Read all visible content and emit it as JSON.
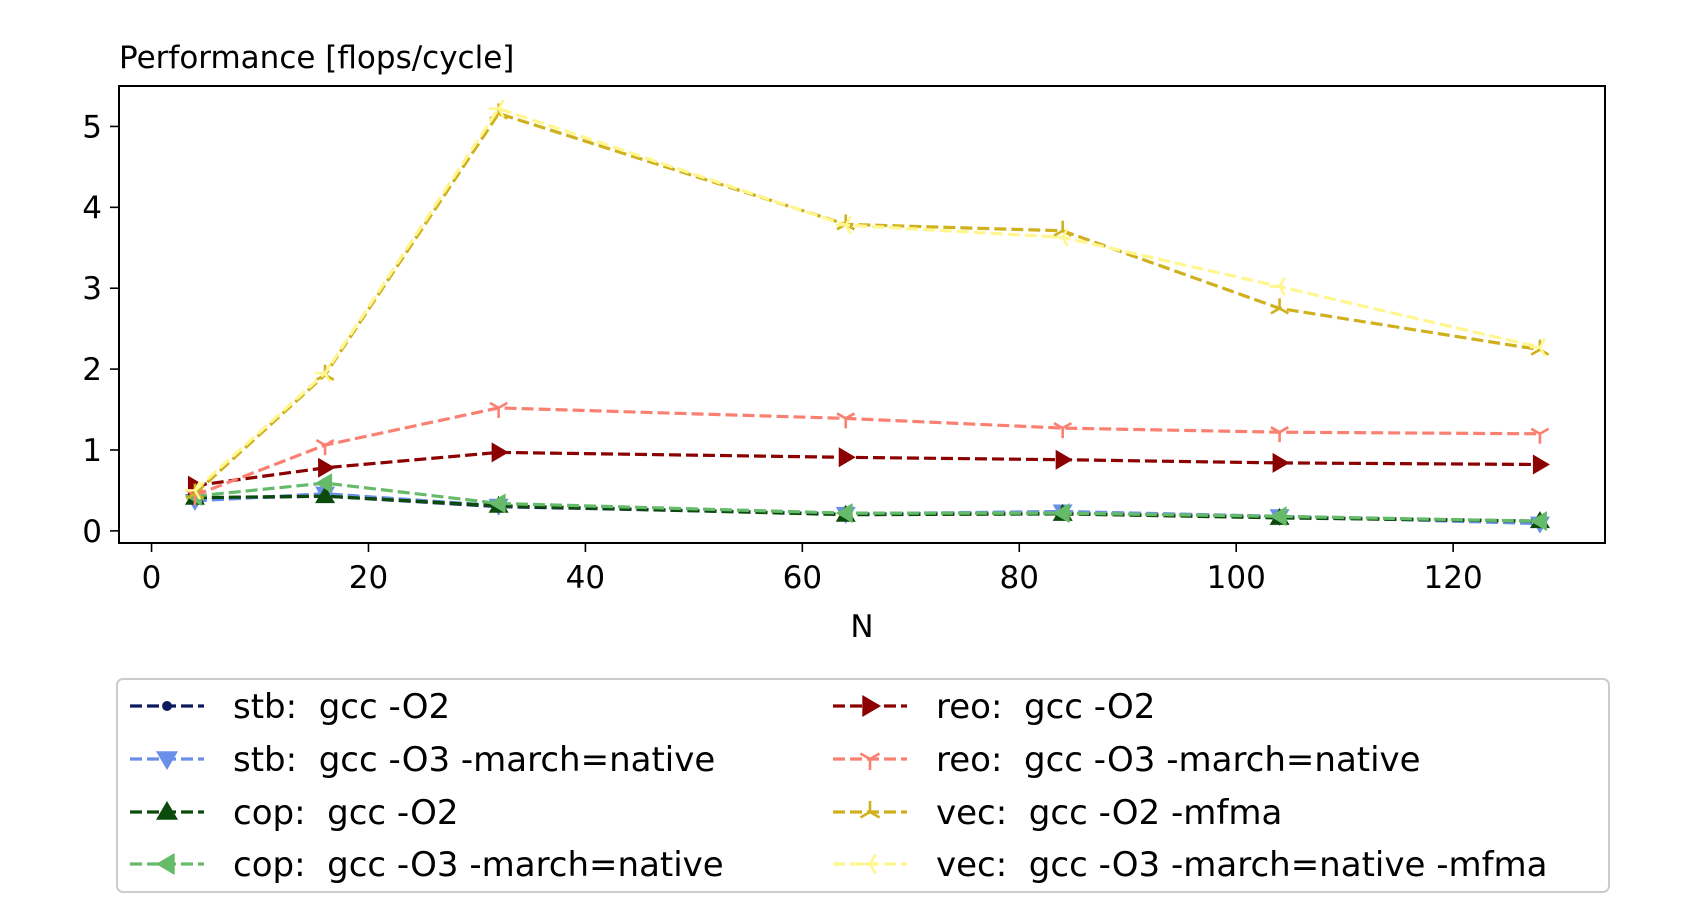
{
  "chart_data": {
    "type": "line",
    "title": "",
    "ylabel": "Performance [flops/cycle]",
    "xlabel": "N",
    "xlim": [
      -3,
      134
    ],
    "ylim": [
      -0.15,
      5.5
    ],
    "xticks": [
      0,
      20,
      40,
      60,
      80,
      100,
      120
    ],
    "yticks": [
      0,
      1,
      2,
      3,
      4,
      5
    ],
    "grid": false,
    "legend_position": "below",
    "x": [
      4,
      16,
      32,
      64,
      84,
      104,
      128
    ],
    "series": [
      {
        "name": "stb:  gcc -O2",
        "color": "#0b1a5c",
        "marker": "dot",
        "values": [
          0.4,
          0.43,
          0.3,
          0.21,
          0.22,
          0.17,
          0.12
        ]
      },
      {
        "name": "stb:  gcc -O3 -march=native",
        "color": "#6a8fe8",
        "marker": "triangle-down",
        "values": [
          0.37,
          0.46,
          0.31,
          0.21,
          0.24,
          0.18,
          0.09
        ]
      },
      {
        "name": "cop:  gcc -O2",
        "color": "#0b4a0b",
        "marker": "triangle-up",
        "values": [
          0.41,
          0.43,
          0.31,
          0.2,
          0.21,
          0.16,
          0.12
        ]
      },
      {
        "name": "cop:  gcc -O3 -march=native",
        "color": "#66bb6a",
        "marker": "triangle-left",
        "values": [
          0.43,
          0.59,
          0.34,
          0.22,
          0.22,
          0.18,
          0.12
        ]
      },
      {
        "name": "reo:  gcc -O2",
        "color": "#8b0000",
        "marker": "triangle-right",
        "values": [
          0.56,
          0.78,
          0.97,
          0.91,
          0.88,
          0.84,
          0.82
        ]
      },
      {
        "name": "reo:  gcc -O3 -march=native",
        "color": "#fa8072",
        "marker": "tri-down",
        "values": [
          0.44,
          1.06,
          1.52,
          1.39,
          1.27,
          1.22,
          1.2
        ]
      },
      {
        "name": "vec:  gcc -O2 -mfma",
        "color": "#cfb01e",
        "marker": "tri-up",
        "values": [
          0.46,
          1.93,
          5.16,
          3.79,
          3.71,
          2.75,
          2.24
        ]
      },
      {
        "name": "vec:  gcc -O3 -march=native -mfma",
        "color": "#fff68f",
        "marker": "tri-left",
        "values": [
          0.5,
          1.95,
          5.22,
          3.78,
          3.63,
          3.02,
          2.27
        ]
      }
    ]
  }
}
